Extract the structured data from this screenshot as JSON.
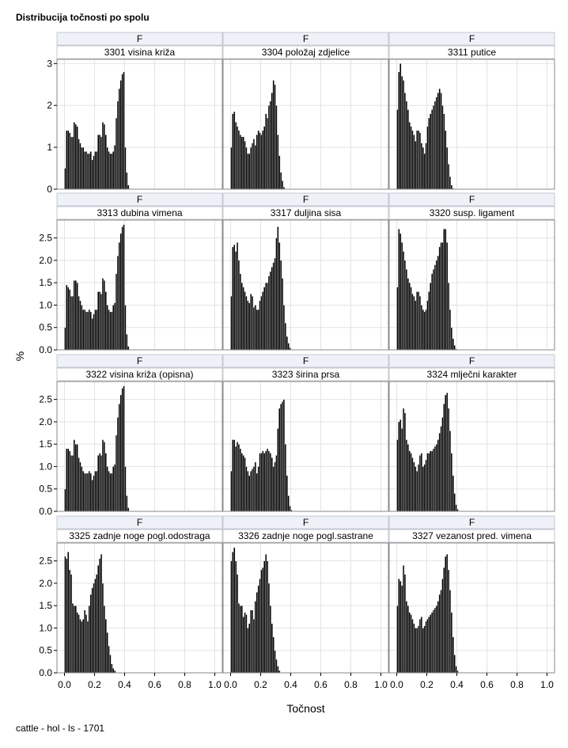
{
  "title": "Distribucija točnosti po spolu",
  "footnote": "cattle - hol - ls - 1701",
  "chart_data": {
    "type": "histogram-panel",
    "xlabel": "Točnost",
    "ylabel": "%",
    "xlim": [
      -0.05,
      1.05
    ],
    "xticks": [
      0.0,
      0.2,
      0.4,
      0.6,
      0.8,
      1.0
    ],
    "xtick_labels": [
      "0.0",
      "0.2",
      "0.4",
      "0.6",
      "0.8",
      "1.0"
    ],
    "grid": true,
    "bin_width": 0.01,
    "x_start": 0.0,
    "rows": [
      {
        "ylim": [
          0,
          3.1
        ],
        "yticks": [
          0,
          1,
          2,
          3
        ],
        "ytick_labels": [
          "0",
          "1",
          "2",
          "3"
        ]
      },
      {
        "ylim": [
          0,
          2.9
        ],
        "yticks": [
          0,
          0.5,
          1,
          1.5,
          2,
          2.5
        ],
        "ytick_labels": [
          "0.0",
          "0.5",
          "1.0",
          "1.5",
          "2.0",
          "2.5"
        ]
      },
      {
        "ylim": [
          0,
          2.9
        ],
        "yticks": [
          0,
          0.5,
          1,
          1.5,
          2,
          2.5
        ],
        "ytick_labels": [
          "0.0",
          "0.5",
          "1.0",
          "1.5",
          "2.0",
          "2.5"
        ]
      },
      {
        "ylim": [
          0,
          2.9
        ],
        "yticks": [
          0,
          0.5,
          1,
          1.5,
          2,
          2.5
        ],
        "ytick_labels": [
          "0.0",
          "0.5",
          "1.0",
          "1.5",
          "2.0",
          "2.5"
        ]
      }
    ],
    "panels": [
      {
        "sex": "F",
        "trait": "3301 visina križa",
        "values": [
          0.5,
          1.4,
          1.4,
          1.35,
          1.25,
          1.25,
          1.6,
          1.55,
          1.5,
          1.2,
          1.1,
          1.0,
          1.0,
          0.9,
          0.9,
          0.85,
          0.85,
          0.9,
          0.7,
          0.8,
          0.9,
          0.9,
          1.3,
          1.3,
          1.25,
          1.6,
          1.55,
          1.3,
          1.0,
          0.9,
          0.85,
          0.85,
          0.9,
          1.05,
          1.7,
          2.1,
          2.4,
          2.6,
          2.75,
          2.8,
          1.0,
          0.4,
          0.1
        ]
      },
      {
        "sex": "F",
        "trait": "3304 položaj zdjelice",
        "values": [
          1.0,
          1.8,
          1.85,
          1.6,
          1.5,
          1.4,
          1.3,
          1.25,
          1.25,
          1.15,
          1.0,
          0.85,
          0.85,
          1.0,
          1.1,
          1.2,
          1.05,
          1.3,
          1.4,
          1.35,
          1.3,
          1.4,
          1.5,
          1.8,
          1.7,
          2.0,
          2.1,
          2.3,
          2.6,
          2.5,
          2.0,
          1.3,
          0.8,
          0.4,
          0.2,
          0.05
        ]
      },
      {
        "sex": "F",
        "trait": "3311 putice",
        "values": [
          1.9,
          2.8,
          3.0,
          2.7,
          2.6,
          2.3,
          2.1,
          1.9,
          1.6,
          1.5,
          1.4,
          1.3,
          1.15,
          1.4,
          1.4,
          1.35,
          1.1,
          1.0,
          0.85,
          1.1,
          1.5,
          1.7,
          1.8,
          1.9,
          2.0,
          2.1,
          2.2,
          2.3,
          2.4,
          2.3,
          2.0,
          1.8,
          1.4,
          1.0,
          0.6,
          0.3,
          0.1,
          0.02
        ]
      },
      {
        "sex": "F",
        "trait": "3313 dubina vimena",
        "values": [
          0.5,
          1.45,
          1.4,
          1.35,
          1.2,
          1.2,
          1.55,
          1.55,
          1.5,
          1.2,
          1.1,
          1.0,
          0.9,
          0.9,
          0.85,
          0.85,
          0.9,
          0.85,
          0.7,
          0.8,
          0.9,
          0.9,
          1.3,
          1.3,
          1.25,
          1.6,
          1.55,
          1.3,
          1.0,
          0.9,
          0.85,
          0.85,
          1.0,
          1.05,
          1.7,
          2.1,
          2.4,
          2.6,
          2.75,
          2.8,
          1.0,
          0.35,
          0.08
        ]
      },
      {
        "sex": "F",
        "trait": "3317 duljina sisa",
        "values": [
          1.2,
          2.3,
          2.35,
          2.2,
          2.4,
          2.0,
          1.7,
          1.5,
          1.4,
          1.3,
          1.2,
          1.1,
          1.05,
          1.25,
          1.2,
          0.95,
          1.0,
          0.9,
          0.9,
          1.1,
          1.2,
          1.3,
          1.4,
          1.5,
          1.5,
          1.65,
          1.75,
          1.85,
          1.95,
          2.05,
          2.5,
          2.75,
          2.4,
          2.0,
          1.6,
          1.0,
          0.6,
          0.3,
          0.15,
          0.05
        ]
      },
      {
        "sex": "F",
        "trait": "3320 susp. ligament",
        "values": [
          1.4,
          2.7,
          2.6,
          2.4,
          2.2,
          2.0,
          1.8,
          1.6,
          1.5,
          1.4,
          1.25,
          1.2,
          1.1,
          1.3,
          1.3,
          1.2,
          1.0,
          0.9,
          0.85,
          0.9,
          1.1,
          1.3,
          1.5,
          1.7,
          1.8,
          1.9,
          2.0,
          2.1,
          2.3,
          2.4,
          2.4,
          2.7,
          2.7,
          2.4,
          1.5,
          0.9,
          0.5,
          0.25,
          0.1,
          0.02
        ]
      },
      {
        "sex": "F",
        "trait": "3322 visina križa (opisna)",
        "values": [
          0.5,
          1.4,
          1.4,
          1.35,
          1.25,
          1.25,
          1.6,
          1.5,
          1.5,
          1.2,
          1.1,
          1.0,
          0.9,
          0.85,
          0.85,
          0.85,
          0.9,
          0.85,
          0.7,
          0.8,
          0.9,
          0.9,
          1.25,
          1.3,
          1.25,
          1.6,
          1.55,
          1.3,
          1.0,
          0.9,
          0.85,
          0.85,
          1.0,
          1.05,
          1.7,
          2.1,
          2.4,
          2.6,
          2.75,
          2.8,
          1.0,
          0.35,
          0.08
        ]
      },
      {
        "sex": "F",
        "trait": "3323 širina prsa",
        "values": [
          0.9,
          1.6,
          1.6,
          1.45,
          1.55,
          1.5,
          1.4,
          1.3,
          1.25,
          1.2,
          1.0,
          0.9,
          0.8,
          0.9,
          0.95,
          1.0,
          1.1,
          0.85,
          1.0,
          1.3,
          1.3,
          1.35,
          1.3,
          1.35,
          1.4,
          1.35,
          1.3,
          1.2,
          1.0,
          1.1,
          1.25,
          1.85,
          2.3,
          2.4,
          2.45,
          2.5,
          1.5,
          0.8,
          0.35,
          0.12,
          0.03
        ]
      },
      {
        "sex": "F",
        "trait": "3324 mlječni karakter",
        "values": [
          1.6,
          2.0,
          2.05,
          1.85,
          2.3,
          2.2,
          1.6,
          1.5,
          1.35,
          1.3,
          1.2,
          1.1,
          1.0,
          0.9,
          1.05,
          1.25,
          1.3,
          1.0,
          1.05,
          1.15,
          1.3,
          1.3,
          1.35,
          1.35,
          1.4,
          1.45,
          1.5,
          1.6,
          1.75,
          1.9,
          2.1,
          2.4,
          2.6,
          2.65,
          2.3,
          1.8,
          1.3,
          0.8,
          0.4,
          0.15,
          0.05
        ]
      },
      {
        "sex": "F",
        "trait": "3325 zadnje noge pogl.odostraga",
        "values": [
          2.6,
          2.55,
          2.7,
          2.3,
          2.2,
          1.55,
          1.5,
          1.5,
          1.35,
          1.3,
          1.2,
          1.15,
          1.2,
          1.4,
          1.3,
          1.15,
          1.5,
          1.75,
          1.9,
          2.0,
          2.1,
          2.2,
          2.4,
          2.55,
          2.65,
          2.0,
          1.5,
          1.2,
          0.9,
          0.6,
          0.4,
          0.2,
          0.1,
          0.05
        ]
      },
      {
        "sex": "F",
        "trait": "3326 zadnje noge pogl.sastrane",
        "values": [
          2.5,
          2.7,
          2.8,
          2.5,
          2.2,
          1.55,
          1.5,
          1.5,
          1.25,
          1.35,
          1.3,
          1.0,
          1.1,
          1.4,
          1.4,
          1.2,
          1.6,
          1.8,
          1.95,
          2.1,
          2.3,
          2.35,
          2.5,
          2.65,
          2.5,
          2.0,
          1.5,
          1.1,
          0.8,
          0.5,
          0.3,
          0.15,
          0.05
        ]
      },
      {
        "sex": "F",
        "trait": "3327 vezanost pred. vimena",
        "values": [
          1.5,
          2.1,
          2.05,
          1.95,
          2.4,
          2.2,
          1.6,
          1.5,
          1.35,
          1.3,
          1.2,
          1.1,
          1.0,
          1.0,
          1.05,
          1.2,
          1.25,
          1.0,
          1.05,
          1.15,
          1.2,
          1.25,
          1.3,
          1.35,
          1.4,
          1.45,
          1.5,
          1.6,
          1.75,
          1.85,
          2.1,
          2.35,
          2.6,
          2.65,
          2.3,
          1.85,
          1.35,
          0.8,
          0.4,
          0.15,
          0.05
        ]
      }
    ]
  }
}
